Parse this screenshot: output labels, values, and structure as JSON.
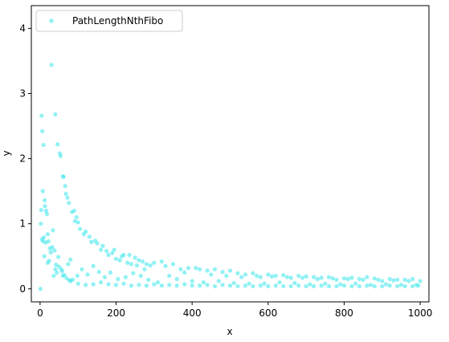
{
  "chart_data": {
    "type": "scatter",
    "title": "",
    "xlabel": "x",
    "ylabel": "y",
    "xlim": [
      -23,
      1023
    ],
    "ylim": [
      -0.2,
      4.35
    ],
    "xticks": [
      0,
      200,
      400,
      600,
      800,
      1000
    ],
    "xtick_labels": [
      "0",
      "200",
      "400",
      "600",
      "800",
      "1000"
    ],
    "yticks": [
      0,
      1,
      2,
      3,
      4
    ],
    "ytick_labels": [
      "0",
      "1",
      "2",
      "3",
      "4"
    ],
    "grid": false,
    "legend_position": "top-left",
    "series": [
      {
        "name": "PathLengthNthFibo",
        "color": "#48e8ec",
        "marker": "circle",
        "alpha": 0.6,
        "points": [
          [
            1,
            0.0
          ],
          [
            2,
            1.0
          ],
          [
            3,
            1.21
          ],
          [
            4,
            2.66
          ],
          [
            5,
            0.76
          ],
          [
            6,
            2.42
          ],
          [
            7,
            1.5
          ],
          [
            8,
            0.73
          ],
          [
            9,
            2.21
          ],
          [
            10,
            0.79
          ],
          [
            11,
            0.5
          ],
          [
            12,
            1.36
          ],
          [
            13,
            1.27
          ],
          [
            15,
            0.71
          ],
          [
            16,
            1.2
          ],
          [
            18,
            1.15
          ],
          [
            20,
            0.84
          ],
          [
            22,
            0.73
          ],
          [
            24,
            0.43
          ],
          [
            26,
            0.62
          ],
          [
            28,
            0.56
          ],
          [
            30,
            3.44
          ],
          [
            32,
            0.64
          ],
          [
            34,
            0.9
          ],
          [
            36,
            0.2
          ],
          [
            38,
            0.59
          ],
          [
            40,
            2.68
          ],
          [
            42,
            0.37
          ],
          [
            44,
            0.25
          ],
          [
            46,
            2.22
          ],
          [
            48,
            0.49
          ],
          [
            50,
            0.34
          ],
          [
            52,
            2.08
          ],
          [
            54,
            2.04
          ],
          [
            56,
            0.3
          ],
          [
            58,
            0.27
          ],
          [
            60,
            1.73
          ],
          [
            62,
            1.72
          ],
          [
            64,
            0.21
          ],
          [
            66,
            1.58
          ],
          [
            68,
            1.46
          ],
          [
            70,
            0.16
          ],
          [
            72,
            1.4
          ],
          [
            74,
            0.38
          ],
          [
            76,
            1.32
          ],
          [
            78,
            0.13
          ],
          [
            80,
            0.45
          ],
          [
            84,
            1.18
          ],
          [
            86,
            0.14
          ],
          [
            90,
            1.2
          ],
          [
            92,
            1.04
          ],
          [
            96,
            1.1
          ],
          [
            98,
            0.2
          ],
          [
            100,
            1.02
          ],
          [
            105,
            0.92
          ],
          [
            110,
            0.3
          ],
          [
            115,
            0.84
          ],
          [
            120,
            0.88
          ],
          [
            125,
            0.22
          ],
          [
            130,
            0.8
          ],
          [
            135,
            0.72
          ],
          [
            140,
            0.35
          ],
          [
            145,
            0.74
          ],
          [
            150,
            0.7
          ],
          [
            155,
            0.26
          ],
          [
            160,
            0.6
          ],
          [
            165,
            0.66
          ],
          [
            170,
            0.18
          ],
          [
            175,
            0.58
          ],
          [
            180,
            0.52
          ],
          [
            185,
            0.25
          ],
          [
            190,
            0.55
          ],
          [
            195,
            0.6
          ],
          [
            200,
            0.46
          ],
          [
            205,
            0.15
          ],
          [
            210,
            0.44
          ],
          [
            215,
            0.5
          ],
          [
            220,
            0.52
          ],
          [
            225,
            0.18
          ],
          [
            230,
            0.4
          ],
          [
            235,
            0.52
          ],
          [
            240,
            0.38
          ],
          [
            245,
            0.24
          ],
          [
            250,
            0.48
          ],
          [
            255,
            0.36
          ],
          [
            260,
            0.44
          ],
          [
            265,
            0.2
          ],
          [
            270,
            0.42
          ],
          [
            275,
            0.3
          ],
          [
            280,
            0.38
          ],
          [
            285,
            0.14
          ],
          [
            290,
            0.36
          ],
          [
            300,
            0.4
          ],
          [
            310,
            0.1
          ],
          [
            320,
            0.42
          ],
          [
            330,
            0.35
          ],
          [
            340,
            0.2
          ],
          [
            350,
            0.38
          ],
          [
            360,
            0.15
          ],
          [
            370,
            0.3
          ],
          [
            380,
            0.25
          ],
          [
            390,
            0.32
          ],
          [
            400,
            0.12
          ],
          [
            410,
            0.32
          ],
          [
            420,
            0.3
          ],
          [
            430,
            0.1
          ],
          [
            440,
            0.28
          ],
          [
            450,
            0.22
          ],
          [
            460,
            0.3
          ],
          [
            470,
            0.12
          ],
          [
            480,
            0.26
          ],
          [
            490,
            0.2
          ],
          [
            500,
            0.28
          ],
          [
            510,
            0.09
          ],
          [
            520,
            0.24
          ],
          [
            530,
            0.18
          ],
          [
            540,
            0.22
          ],
          [
            550,
            0.08
          ],
          [
            560,
            0.24
          ],
          [
            570,
            0.2
          ],
          [
            580,
            0.18
          ],
          [
            590,
            0.08
          ],
          [
            600,
            0.22
          ],
          [
            610,
            0.19
          ],
          [
            620,
            0.2
          ],
          [
            630,
            0.1
          ],
          [
            640,
            0.21
          ],
          [
            650,
            0.18
          ],
          [
            660,
            0.17
          ],
          [
            670,
            0.09
          ],
          [
            680,
            0.2
          ],
          [
            690,
            0.17
          ],
          [
            700,
            0.19
          ],
          [
            710,
            0.07
          ],
          [
            720,
            0.18
          ],
          [
            730,
            0.15
          ],
          [
            740,
            0.17
          ],
          [
            750,
            0.08
          ],
          [
            760,
            0.18
          ],
          [
            770,
            0.16
          ],
          [
            780,
            0.14
          ],
          [
            790,
            0.07
          ],
          [
            800,
            0.16
          ],
          [
            810,
            0.15
          ],
          [
            820,
            0.17
          ],
          [
            830,
            0.08
          ],
          [
            840,
            0.15
          ],
          [
            850,
            0.14
          ],
          [
            860,
            0.18
          ],
          [
            870,
            0.06
          ],
          [
            880,
            0.16
          ],
          [
            890,
            0.14
          ],
          [
            900,
            0.12
          ],
          [
            910,
            0.07
          ],
          [
            920,
            0.15
          ],
          [
            930,
            0.13
          ],
          [
            940,
            0.14
          ],
          [
            950,
            0.06
          ],
          [
            960,
            0.14
          ],
          [
            970,
            0.12
          ],
          [
            980,
            0.15
          ],
          [
            990,
            0.06
          ],
          [
            1000,
            0.12
          ],
          [
            20,
            0.4
          ],
          [
            40,
            0.3
          ],
          [
            60,
            0.2
          ],
          [
            80,
            0.12
          ],
          [
            100,
            0.08
          ],
          [
            120,
            0.06
          ],
          [
            140,
            0.07
          ],
          [
            160,
            0.1
          ],
          [
            180,
            0.07
          ],
          [
            200,
            0.06
          ],
          [
            220,
            0.08
          ],
          [
            240,
            0.05
          ],
          [
            260,
            0.06
          ],
          [
            280,
            0.05
          ],
          [
            300,
            0.07
          ],
          [
            320,
            0.05
          ],
          [
            340,
            0.06
          ],
          [
            360,
            0.05
          ],
          [
            380,
            0.07
          ],
          [
            400,
            0.05
          ],
          [
            420,
            0.05
          ],
          [
            440,
            0.06
          ],
          [
            460,
            0.04
          ],
          [
            480,
            0.06
          ],
          [
            500,
            0.05
          ],
          [
            520,
            0.04
          ],
          [
            540,
            0.05
          ],
          [
            560,
            0.04
          ],
          [
            580,
            0.05
          ],
          [
            600,
            0.04
          ],
          [
            620,
            0.05
          ],
          [
            640,
            0.04
          ],
          [
            660,
            0.04
          ],
          [
            680,
            0.05
          ],
          [
            700,
            0.04
          ],
          [
            720,
            0.04
          ],
          [
            740,
            0.05
          ],
          [
            760,
            0.04
          ],
          [
            780,
            0.04
          ],
          [
            800,
            0.05
          ],
          [
            820,
            0.04
          ],
          [
            840,
            0.04
          ],
          [
            860,
            0.05
          ],
          [
            880,
            0.04
          ],
          [
            900,
            0.04
          ],
          [
            920,
            0.05
          ],
          [
            940,
            0.04
          ],
          [
            960,
            0.04
          ],
          [
            980,
            0.04
          ],
          [
            995,
            0.05
          ]
        ]
      }
    ]
  }
}
